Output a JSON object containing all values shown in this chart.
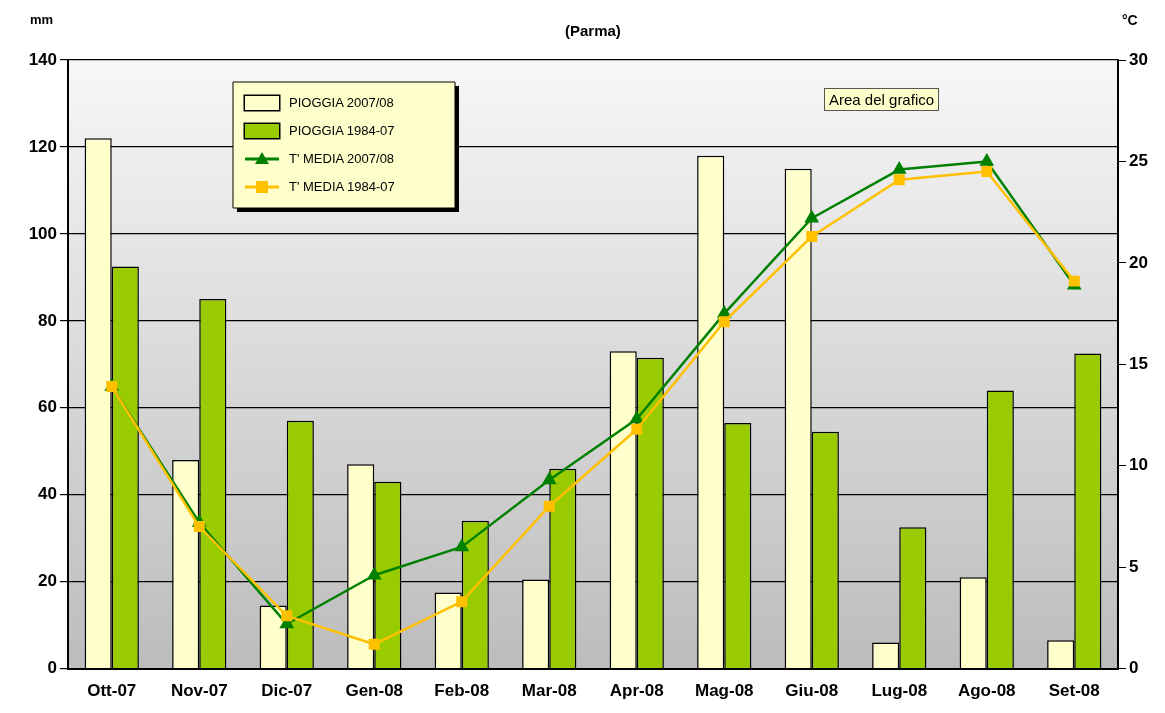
{
  "chart_data": {
    "type": "bar",
    "title": "(Parma)",
    "ylabel": "mm",
    "y2label": "°C",
    "categories": [
      "Ott-07",
      "Nov-07",
      "Dic-07",
      "Gen-08",
      "Feb-08",
      "Mar-08",
      "Apr-08",
      "Mag-08",
      "Giu-08",
      "Lug-08",
      "Ago-08",
      "Set-08"
    ],
    "series": [
      {
        "name": "PIOGGIA 2007/08",
        "type": "bar",
        "color": "#ffffcc",
        "values": [
          122,
          48,
          14.5,
          47,
          17.5,
          20.5,
          73,
          118,
          115,
          6,
          21,
          6.5
        ]
      },
      {
        "name": "PIOGGIA 1984-07",
        "type": "bar",
        "color": "#99cc00",
        "values": [
          92.5,
          85,
          57,
          43,
          34,
          46,
          71.5,
          56.5,
          54.5,
          32.5,
          64,
          72.5
        ]
      },
      {
        "name": "T' MEDIA 2007/08",
        "type": "line",
        "axis": "y2",
        "marker": "triangle",
        "color": "#008000",
        "values": [
          13.9,
          7.2,
          2.2,
          4.6,
          6.0,
          9.3,
          12.3,
          17.5,
          22.2,
          24.6,
          25.0,
          18.9
        ]
      },
      {
        "name": "T' MEDIA 1984-07",
        "type": "line",
        "axis": "y2",
        "marker": "square",
        "color": "#ffc000",
        "values": [
          13.9,
          7.0,
          2.6,
          1.2,
          3.3,
          8.0,
          11.8,
          17.1,
          21.3,
          24.1,
          24.5,
          19.1
        ]
      }
    ],
    "ylim": [
      0,
      140
    ],
    "yticks": [
      0,
      20,
      40,
      60,
      80,
      100,
      120,
      140
    ],
    "y2lim": [
      0,
      30
    ],
    "y2ticks": [
      0,
      5,
      10,
      15,
      20,
      25,
      30
    ],
    "grid": "y",
    "legend": "top left",
    "annotations": [
      "Area del grafico"
    ]
  }
}
